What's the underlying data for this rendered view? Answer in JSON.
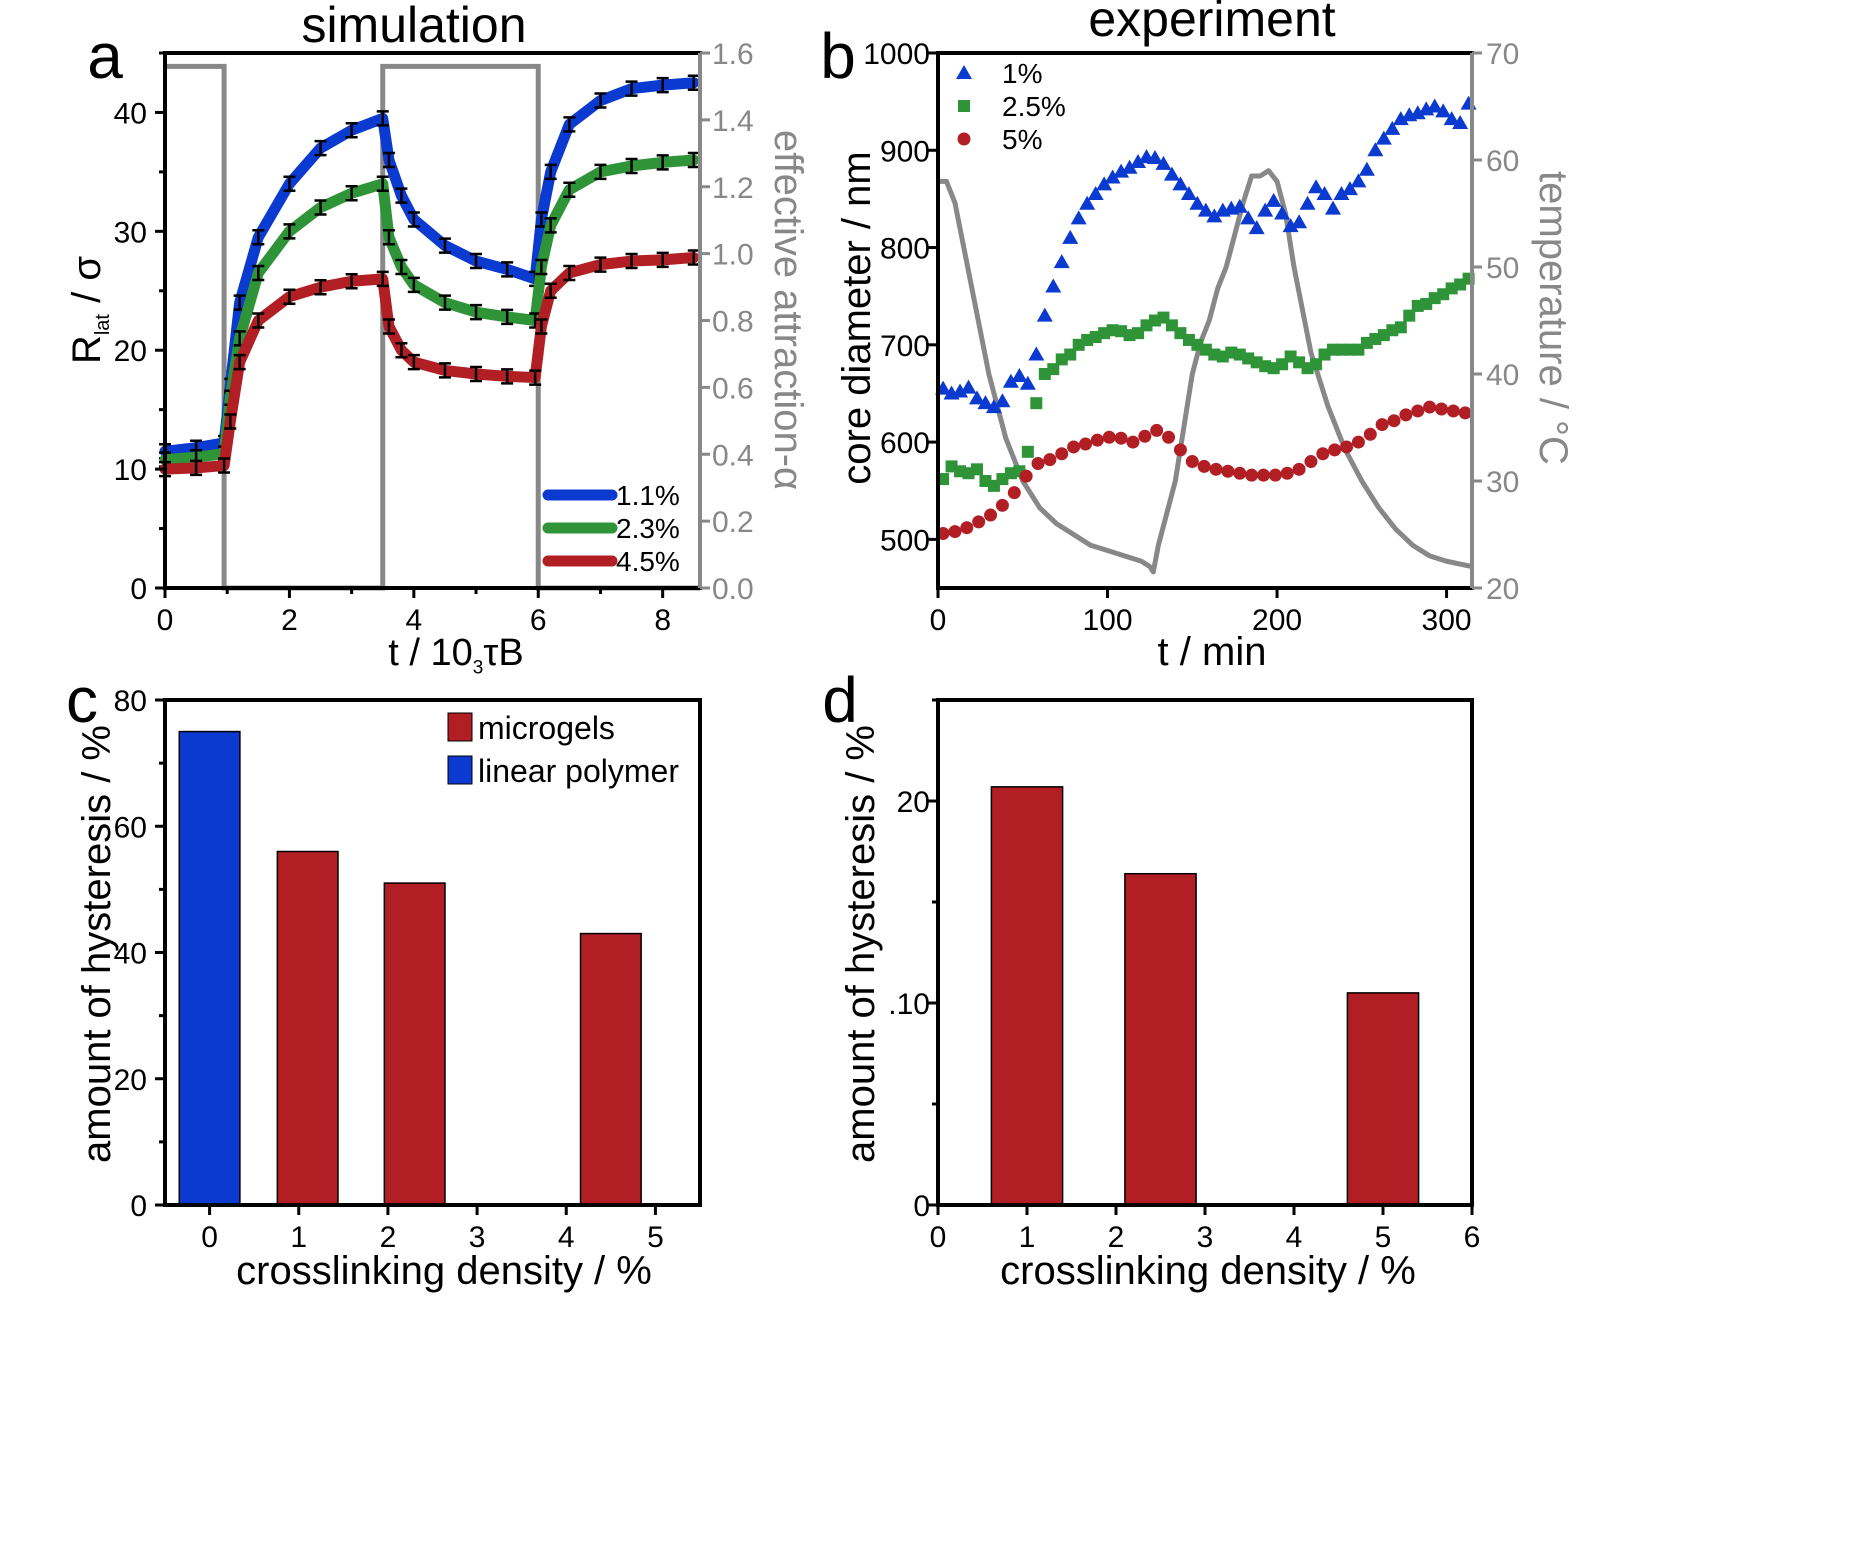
{
  "colors": {
    "blue": "#0a3ad0",
    "green": "#2f9438",
    "red": "#b11f24",
    "gray": "#888888",
    "black": "#000000"
  },
  "chart_data": [
    {
      "panel": "a",
      "type": "line",
      "title": "simulation",
      "xlabel": "t / 10³τB",
      "ylabel": "Rlat / σ",
      "y2label": "effective attraction-α",
      "xlim": [
        0,
        8.6
      ],
      "ylim": [
        0,
        45
      ],
      "y2lim": [
        0,
        1.6
      ],
      "xticks": [
        "0",
        "2",
        "4",
        "6",
        "8"
      ],
      "yticks": [
        "0",
        "10",
        "20",
        "30",
        "40"
      ],
      "y2ticks": [
        "0.0",
        "0.2",
        "0.4",
        "0.6",
        "0.8",
        "1.0",
        "1.2",
        "1.4",
        "1.6"
      ],
      "legend": [
        "1.1%",
        "2.3%",
        "4.5%"
      ],
      "legend_position": "bottom-right",
      "series": [
        {
          "name": "1.1%",
          "x": [
            0,
            0.5,
            0.95,
            1.05,
            1.2,
            1.5,
            2,
            2.5,
            3,
            3.5,
            3.6,
            3.8,
            4,
            4.5,
            5,
            5.5,
            5.95,
            6.05,
            6.2,
            6.5,
            7,
            7.5,
            8,
            8.5
          ],
          "y": [
            11.5,
            11.8,
            12.2,
            17,
            24,
            29.5,
            34,
            37,
            38.5,
            39.5,
            36,
            33,
            31,
            28.8,
            27.5,
            26.8,
            26,
            31,
            35,
            39,
            41,
            42,
            42.3,
            42.5
          ]
        },
        {
          "name": "2.3%",
          "x": [
            0,
            0.5,
            0.95,
            1.05,
            1.2,
            1.5,
            2,
            2.5,
            3,
            3.5,
            3.6,
            3.8,
            4,
            4.5,
            5,
            5.5,
            5.95,
            6.05,
            6.2,
            6.5,
            7,
            7.5,
            8,
            8.5
          ],
          "y": [
            10.8,
            11,
            11.3,
            16,
            21,
            26.5,
            30,
            32,
            33.2,
            34,
            29.5,
            27,
            25.5,
            24,
            23.2,
            22.8,
            22.5,
            27,
            30.5,
            33.5,
            35,
            35.5,
            35.8,
            36
          ]
        },
        {
          "name": "4.5%",
          "x": [
            0,
            0.5,
            0.95,
            1.05,
            1.2,
            1.5,
            2,
            2.5,
            3,
            3.5,
            3.6,
            3.8,
            4,
            4.5,
            5,
            5.5,
            5.95,
            6.05,
            6.2,
            6.5,
            7,
            7.5,
            8,
            8.5
          ],
          "y": [
            10,
            10.1,
            10.3,
            14,
            19,
            22.5,
            24.5,
            25.3,
            25.8,
            26,
            22,
            20,
            19,
            18.3,
            18,
            17.8,
            17.7,
            22,
            25,
            26.5,
            27.2,
            27.5,
            27.6,
            27.8
          ]
        },
        {
          "name": "effective attraction",
          "axis": "y2",
          "x": [
            0,
            0.95,
            0.95,
            3.5,
            3.5,
            6,
            6,
            8.6
          ],
          "y": [
            1.56,
            1.56,
            0,
            0,
            1.56,
            1.56,
            0,
            0
          ]
        }
      ]
    },
    {
      "panel": "b",
      "type": "scatter",
      "title": "experiment",
      "xlabel": "t / min",
      "ylabel": "core diameter / nm",
      "y2label": "temperature / °C",
      "xlim": [
        0,
        315
      ],
      "ylim": [
        450,
        1000
      ],
      "y2lim": [
        20,
        70
      ],
      "xticks": [
        "0",
        "100",
        "200",
        "300"
      ],
      "yticks": [
        "500",
        "600",
        "700",
        "800",
        "900",
        "1000"
      ],
      "y2ticks": [
        "20",
        "30",
        "40",
        "50",
        "60",
        "70"
      ],
      "legend": [
        "1%",
        "2.5%",
        "5%"
      ],
      "legend_position": "top-left",
      "series": [
        {
          "name": "1%",
          "marker": "triangle",
          "x": [
            3,
            8,
            13,
            18,
            23,
            28,
            33,
            38,
            43,
            48,
            53,
            58,
            63,
            68,
            73,
            78,
            83,
            88,
            93,
            98,
            103,
            108,
            113,
            118,
            123,
            128,
            133,
            138,
            143,
            148,
            153,
            158,
            163,
            168,
            173,
            178,
            183,
            188,
            193,
            198,
            203,
            208,
            213,
            218,
            223,
            228,
            233,
            238,
            243,
            248,
            253,
            258,
            263,
            268,
            273,
            278,
            283,
            288,
            293,
            298,
            303,
            308,
            313
          ],
          "y": [
            655,
            650,
            652,
            656,
            645,
            640,
            636,
            642,
            662,
            668,
            660,
            690,
            730,
            760,
            785,
            810,
            830,
            845,
            855,
            865,
            872,
            878,
            882,
            888,
            893,
            892,
            886,
            875,
            865,
            855,
            845,
            838,
            832,
            838,
            840,
            842,
            830,
            820,
            838,
            848,
            835,
            822,
            826,
            845,
            862,
            855,
            840,
            855,
            860,
            868,
            880,
            900,
            912,
            922,
            932,
            936,
            938,
            942,
            945,
            940,
            932,
            928,
            948
          ]
        },
        {
          "name": "2.5%",
          "marker": "square",
          "x": [
            3,
            8,
            13,
            18,
            23,
            28,
            33,
            38,
            43,
            48,
            53,
            58,
            63,
            68,
            73,
            78,
            83,
            88,
            93,
            98,
            103,
            108,
            113,
            118,
            123,
            128,
            133,
            138,
            143,
            148,
            153,
            158,
            163,
            168,
            173,
            178,
            183,
            188,
            193,
            198,
            203,
            208,
            213,
            218,
            223,
            228,
            233,
            238,
            243,
            248,
            253,
            258,
            263,
            268,
            273,
            278,
            283,
            288,
            293,
            298,
            303,
            308,
            313
          ],
          "y": [
            562,
            575,
            570,
            568,
            572,
            560,
            555,
            562,
            568,
            570,
            590,
            640,
            670,
            675,
            685,
            690,
            700,
            705,
            708,
            712,
            715,
            714,
            710,
            712,
            720,
            725,
            728,
            720,
            712,
            705,
            700,
            695,
            690,
            688,
            692,
            690,
            686,
            682,
            678,
            676,
            680,
            688,
            682,
            676,
            680,
            690,
            695,
            695,
            695,
            695,
            702,
            706,
            710,
            715,
            718,
            730,
            740,
            742,
            748,
            752,
            758,
            762,
            768
          ]
        },
        {
          "name": "5%",
          "marker": "circle",
          "x": [
            3,
            10,
            17,
            24,
            31,
            38,
            45,
            52,
            59,
            66,
            73,
            80,
            87,
            94,
            101,
            108,
            115,
            122,
            129,
            136,
            143,
            150,
            157,
            164,
            171,
            178,
            185,
            192,
            199,
            206,
            213,
            220,
            227,
            234,
            241,
            248,
            255,
            262,
            269,
            276,
            283,
            290,
            297,
            304,
            311
          ],
          "y": [
            506,
            508,
            512,
            518,
            525,
            535,
            548,
            565,
            578,
            582,
            588,
            595,
            598,
            602,
            605,
            604,
            600,
            606,
            612,
            605,
            592,
            580,
            575,
            572,
            570,
            568,
            566,
            566,
            566,
            568,
            572,
            580,
            588,
            592,
            595,
            600,
            608,
            618,
            622,
            628,
            632,
            636,
            634,
            632,
            630
          ]
        },
        {
          "name": "temperature",
          "axis": "y2",
          "x": [
            0,
            5,
            10,
            15,
            20,
            25,
            30,
            40,
            50,
            60,
            70,
            80,
            90,
            100,
            110,
            120,
            125,
            127,
            130,
            135,
            140,
            145,
            150,
            155,
            160,
            165,
            170,
            175,
            180,
            185,
            190,
            195,
            200,
            205,
            210,
            215,
            220,
            230,
            240,
            250,
            260,
            270,
            280,
            290,
            300,
            315
          ],
          "y": [
            58,
            58,
            56,
            52,
            48,
            44,
            40,
            34,
            30,
            27.5,
            26,
            25,
            24,
            23.5,
            23,
            22.5,
            22,
            21.5,
            24,
            27,
            30,
            35,
            40,
            43,
            45,
            48,
            50,
            53,
            56,
            58.5,
            58.5,
            59,
            58,
            55,
            50,
            46,
            42,
            37,
            33,
            30,
            27.5,
            25.5,
            24,
            23,
            22.5,
            22
          ]
        }
      ]
    },
    {
      "panel": "c",
      "type": "bar",
      "xlabel": "crosslinking density / %",
      "ylabel": "amount of hysteresis / %",
      "xlim": [
        -0.5,
        5.5
      ],
      "ylim": [
        0,
        80
      ],
      "xticks": [
        "0",
        "1",
        "2",
        "3",
        "4",
        "5"
      ],
      "yticks": [
        "0",
        "20",
        "40",
        "60",
        "80"
      ],
      "legend": [
        "microgels",
        "linear polymer"
      ],
      "legend_position": "top-right",
      "series": [
        {
          "name": "linear polymer",
          "x": [
            0
          ],
          "values": [
            75
          ]
        },
        {
          "name": "microgels",
          "x": [
            1.1,
            2.3,
            4.5
          ],
          "values": [
            56,
            51,
            43
          ]
        }
      ]
    },
    {
      "panel": "d",
      "type": "bar",
      "xlabel": "crosslinking density / %",
      "ylabel": "amount of hysteresis / %",
      "xlim": [
        0,
        6
      ],
      "ylim": [
        0,
        25
      ],
      "xticks": [
        "0",
        "1",
        "2",
        "3",
        "4",
        "5",
        "6"
      ],
      "yticks": [
        "0",
        ".10",
        "20"
      ],
      "series": [
        {
          "name": "microgels",
          "x": [
            1,
            2.5,
            5
          ],
          "values": [
            20.7,
            16.4,
            10.5
          ]
        }
      ]
    }
  ]
}
